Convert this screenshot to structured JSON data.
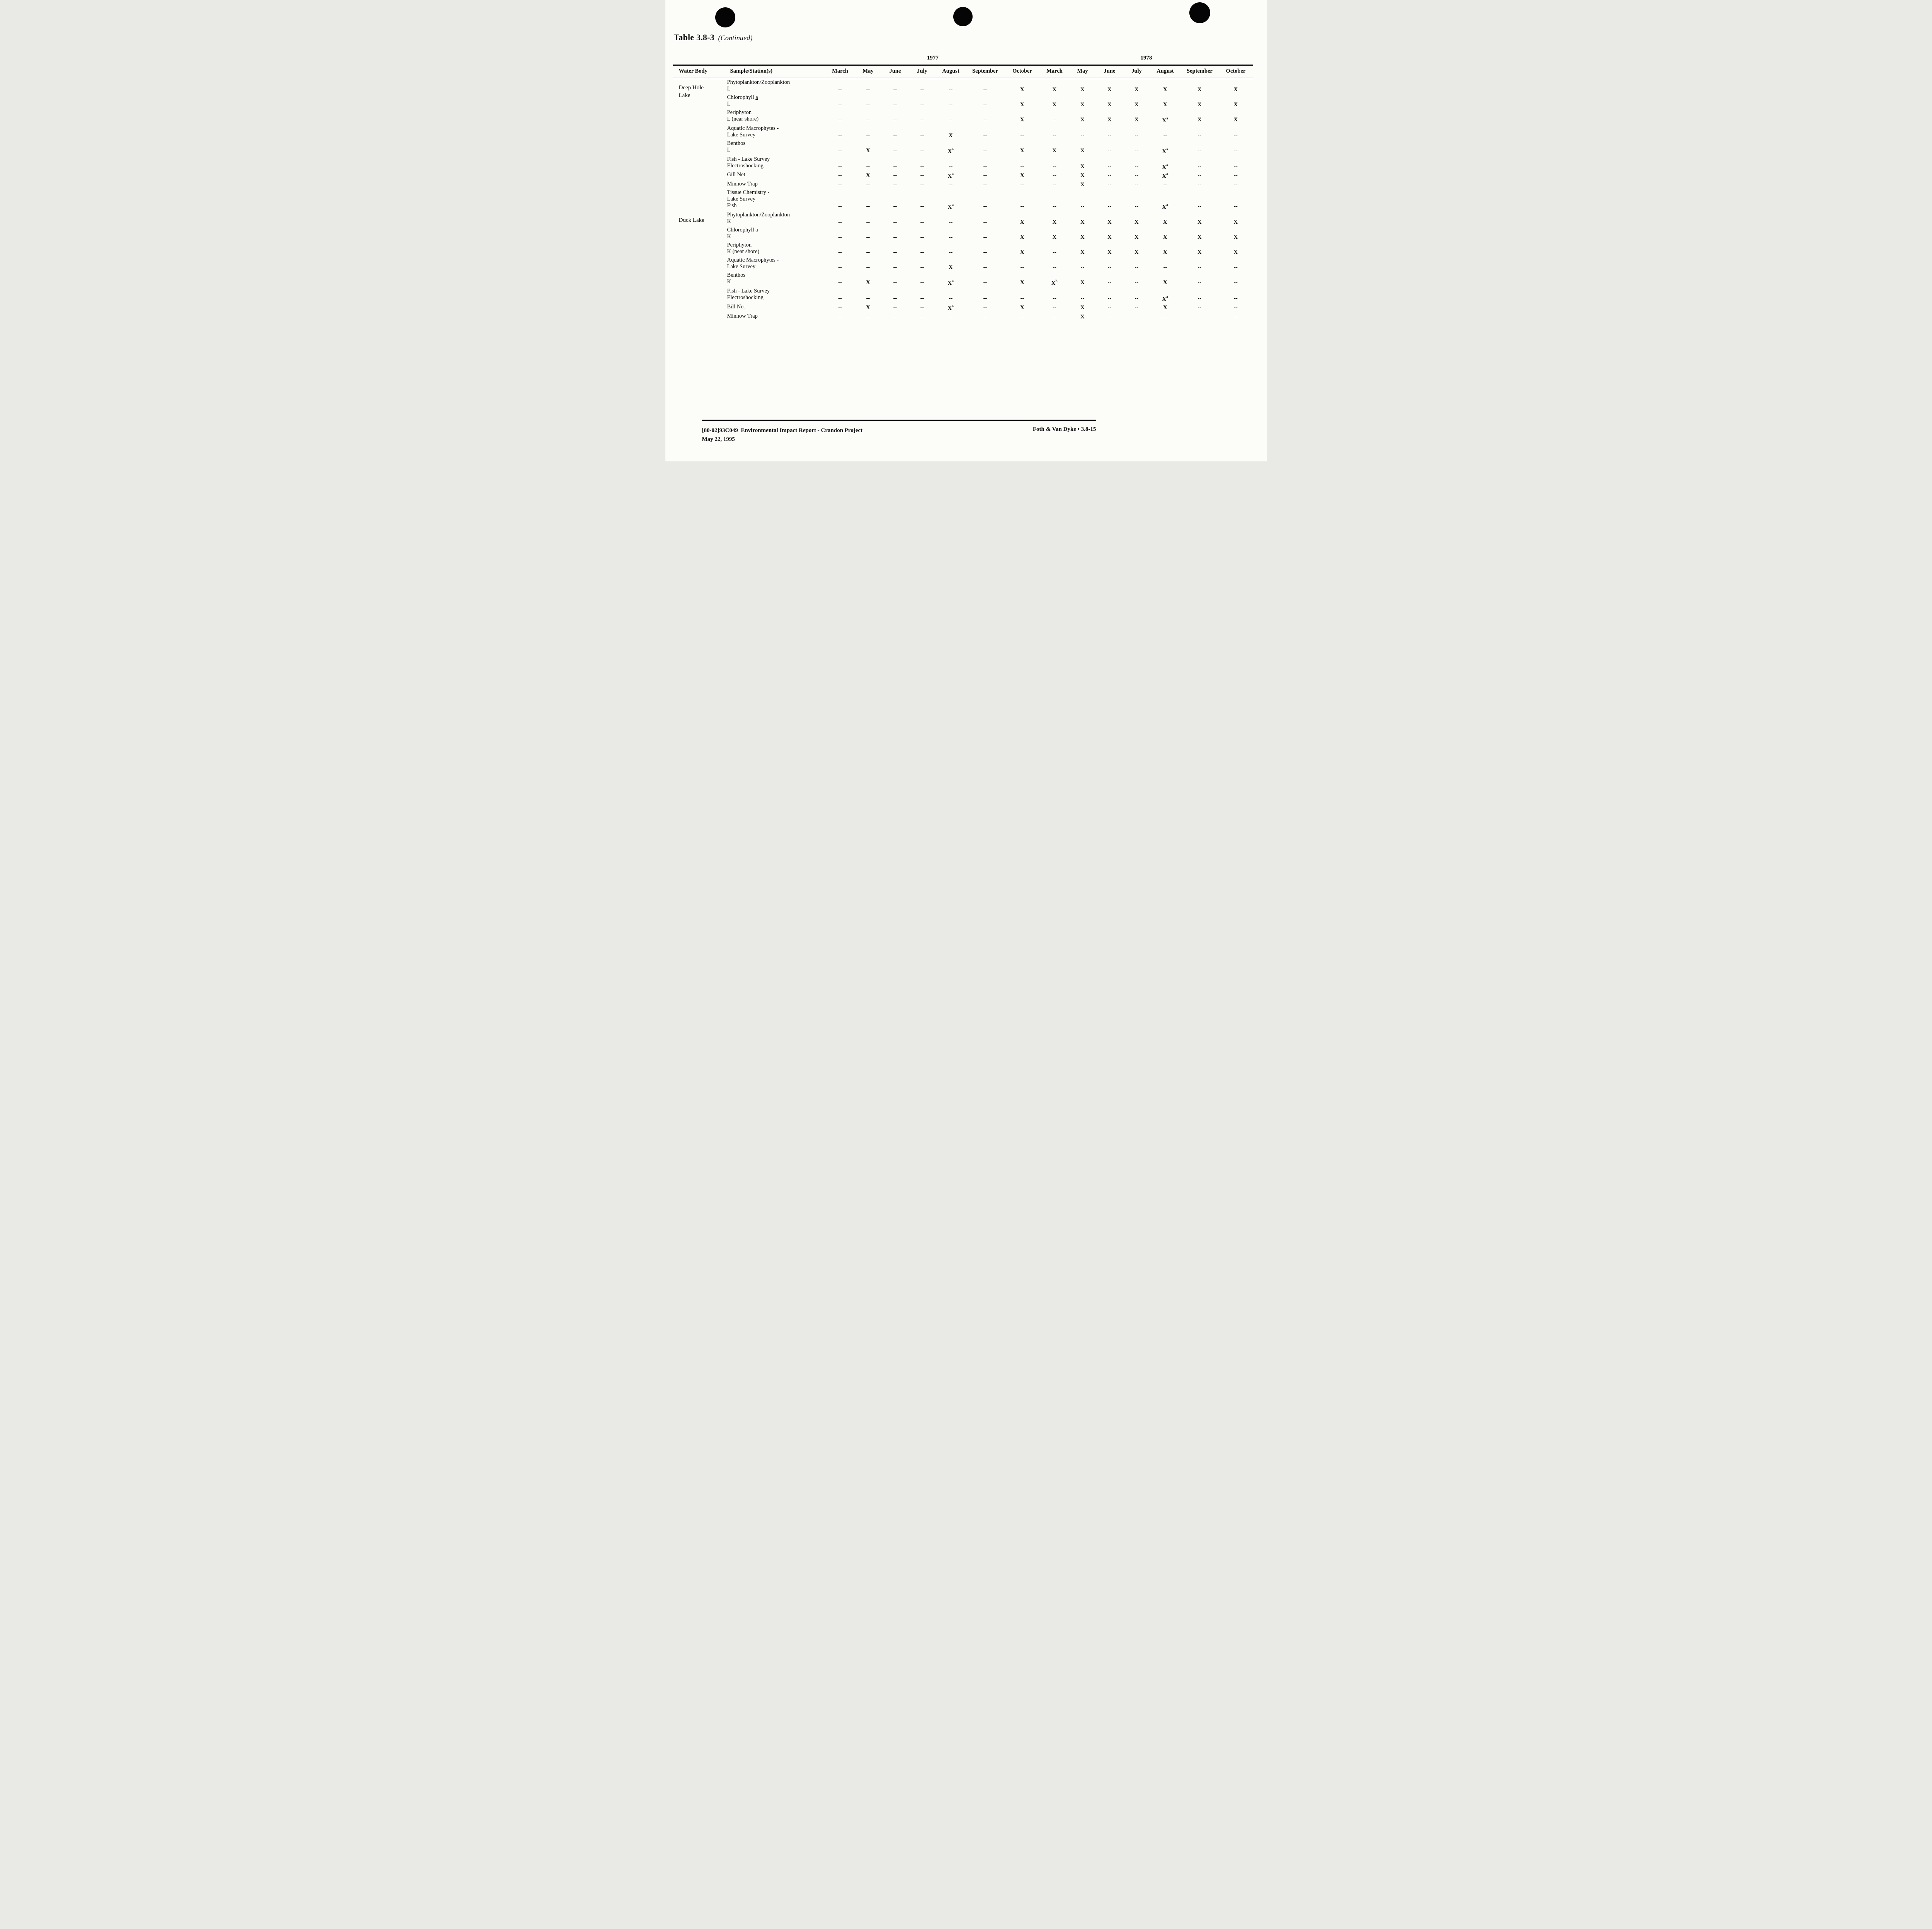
{
  "page": {
    "title": "Table 3.8-3",
    "title_suffix": "(Continued)",
    "footer": {
      "report_line": "[80-02]93C049  Environmental Impact Report - Crandon Project",
      "date_line": "May 22, 1995",
      "right_text": "Foth & Van Dyke • 3.8-15"
    }
  },
  "icons": {
    "punch_hole": "filled-black-circle"
  },
  "table": {
    "years": [
      {
        "label": "1977",
        "span": 7
      },
      {
        "label": "1978",
        "span": 7
      }
    ],
    "columns": [
      "Water Body",
      "Sample/Station(s)",
      "March",
      "May",
      "June",
      "July",
      "August",
      "September",
      "October",
      "March",
      "May",
      "June",
      "July",
      "August",
      "September",
      "October"
    ],
    "groups": [
      {
        "water_body": [
          "Deep Hole",
          "Lake"
        ],
        "samples": [
          {
            "name": "Phytoplankton/Zooplankton",
            "lines": [
              {
                "label": "L",
                "cells": [
                  "--",
                  "--",
                  "--",
                  "--",
                  "--",
                  "--",
                  "X",
                  "X",
                  "X",
                  "X",
                  "X",
                  "X",
                  "X",
                  "X"
                ]
              }
            ]
          },
          {
            "name": "Chlorophyll a",
            "underline_last": true,
            "lines": [
              {
                "label": "L",
                "cells": [
                  "--",
                  "--",
                  "--",
                  "--",
                  "--",
                  "--",
                  "X",
                  "X",
                  "X",
                  "X",
                  "X",
                  "X",
                  "X",
                  "X"
                ]
              }
            ]
          },
          {
            "name": "Periphyton",
            "lines": [
              {
                "label": "L (near shore)",
                "cells": [
                  "--",
                  "--",
                  "--",
                  "--",
                  "--",
                  "--",
                  "X",
                  "--",
                  "X",
                  "X",
                  "X",
                  "X^a",
                  "X",
                  "X"
                ]
              }
            ]
          },
          {
            "name": "Aquatic Macrophytes -",
            "lines": [
              {
                "label": "Lake Survey",
                "cells": [
                  "--",
                  "--",
                  "--",
                  "--",
                  "X",
                  "--",
                  "--",
                  "--",
                  "--",
                  "--",
                  "--",
                  "--",
                  "--",
                  "--"
                ]
              }
            ]
          },
          {
            "name": "Benthos",
            "lines": [
              {
                "label": "L",
                "cells": [
                  "--",
                  "X",
                  "--",
                  "--",
                  "X^a",
                  "--",
                  "X",
                  "X",
                  "X",
                  "--",
                  "--",
                  "X^a",
                  "--",
                  "--"
                ]
              }
            ]
          },
          {
            "name": "Fish - Lake Survey",
            "lines": [
              {
                "label": "Electroshocking",
                "cells": [
                  "--",
                  "--",
                  "--",
                  "--",
                  "--",
                  "--",
                  "--",
                  "--",
                  "X",
                  "--",
                  "--",
                  "X^a",
                  "--",
                  "--"
                ]
              },
              {
                "label": "Gill Net",
                "cells": [
                  "--",
                  "X",
                  "--",
                  "--",
                  "X^a",
                  "--",
                  "X",
                  "--",
                  "X",
                  "--",
                  "--",
                  "X^a",
                  "--",
                  "--"
                ]
              },
              {
                "label": "Minnow Trap",
                "cells": [
                  "--",
                  "--",
                  "--",
                  "--",
                  "--",
                  "--",
                  "--",
                  "--",
                  "X",
                  "--",
                  "--",
                  "--",
                  "--",
                  "--"
                ]
              }
            ]
          },
          {
            "name": "Tissue Chemistry -",
            "lines": [
              {
                "label": "Lake Survey",
                "cells": null
              },
              {
                "label": "Fish",
                "cells": [
                  "--",
                  "--",
                  "--",
                  "--",
                  "X^a",
                  "--",
                  "--",
                  "--",
                  "--",
                  "--",
                  "--",
                  "X^a",
                  "--",
                  "--"
                ]
              }
            ]
          }
        ]
      },
      {
        "water_body": [
          "Duck Lake"
        ],
        "samples": [
          {
            "name": "Phytoplankton/Zooplankton",
            "lines": [
              {
                "label": "K",
                "cells": [
                  "--",
                  "--",
                  "--",
                  "--",
                  "--",
                  "--",
                  "X",
                  "X",
                  "X",
                  "X",
                  "X",
                  "X",
                  "X",
                  "X"
                ]
              }
            ]
          },
          {
            "name": "Chlorophyll a",
            "underline_last": true,
            "lines": [
              {
                "label": "K",
                "cells": [
                  "--",
                  "--",
                  "--",
                  "--",
                  "--",
                  "--",
                  "X",
                  "X",
                  "X",
                  "X",
                  "X",
                  "X",
                  "X",
                  "X"
                ]
              }
            ]
          },
          {
            "name": "Periphyton",
            "lines": [
              {
                "label": "K (near shore)",
                "cells": [
                  "--",
                  "--",
                  "--",
                  "--",
                  "--",
                  "--",
                  "X",
                  "--",
                  "X",
                  "X",
                  "X",
                  "X",
                  "X",
                  "X"
                ]
              }
            ]
          },
          {
            "name": "Aquatic Macrophytes -",
            "lines": [
              {
                "label": "Lake Survey",
                "cells": [
                  "--",
                  "--",
                  "--",
                  "--",
                  "X",
                  "--",
                  "--",
                  "--",
                  "--",
                  "--",
                  "--",
                  "--",
                  "--",
                  "--"
                ]
              }
            ]
          },
          {
            "name": "Benthos",
            "lines": [
              {
                "label": "K",
                "cells": [
                  "--",
                  "X",
                  "--",
                  "--",
                  "X^a",
                  "--",
                  "X",
                  "X^b",
                  "X",
                  "--",
                  "--",
                  "X",
                  "--",
                  "--"
                ]
              }
            ]
          },
          {
            "name": "Fish - Lake Survey",
            "lines": [
              {
                "label": "Electroshocking",
                "cells": [
                  "--",
                  "--",
                  "--",
                  "--",
                  "--",
                  "--",
                  "--",
                  "--",
                  "--",
                  "--",
                  "--",
                  "X^a",
                  "--",
                  "--"
                ]
              },
              {
                "label": "Bill Net",
                "cells": [
                  "--",
                  "X",
                  "--",
                  "--",
                  "X^a",
                  "--",
                  "X",
                  "--",
                  "X",
                  "--",
                  "--",
                  "X",
                  "--",
                  "--"
                ]
              },
              {
                "label": "Minnow Trap",
                "cells": [
                  "--",
                  "--",
                  "--",
                  "--",
                  "--",
                  "--",
                  "--",
                  "--",
                  "X",
                  "--",
                  "--",
                  "--",
                  "--",
                  "--"
                ]
              }
            ]
          }
        ]
      }
    ]
  }
}
